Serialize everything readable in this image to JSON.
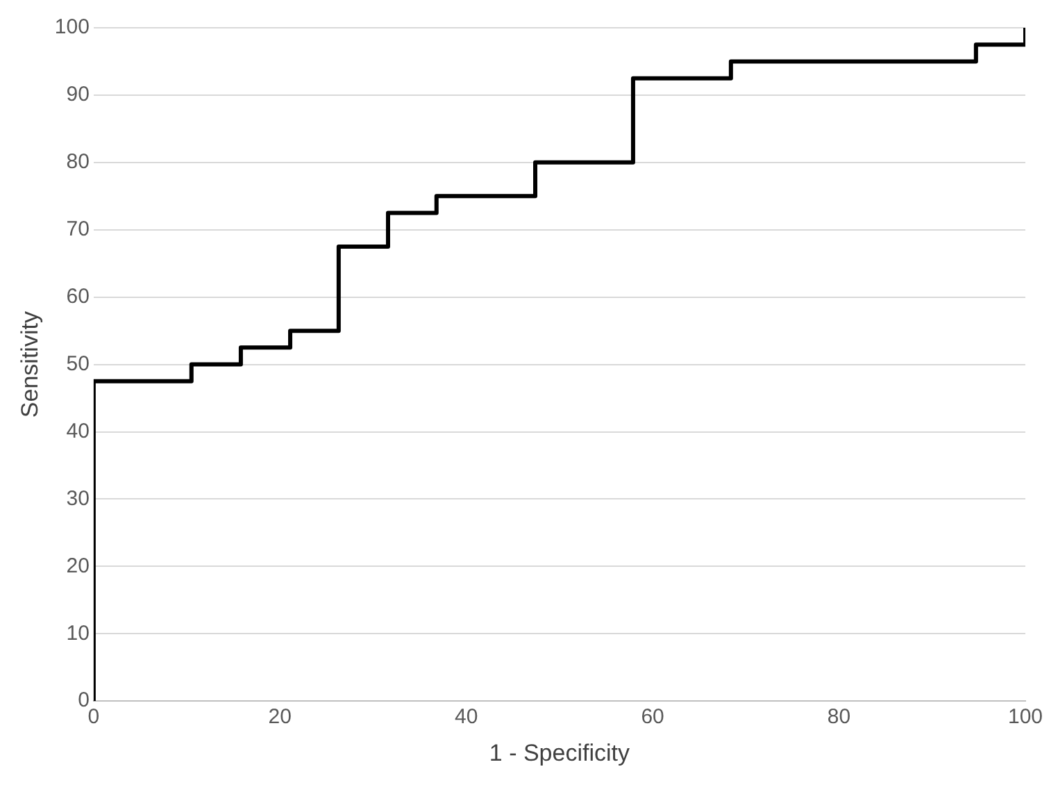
{
  "chart_data": {
    "type": "step",
    "xlabel": "1 - Specificity",
    "ylabel": "Sensitivity",
    "x": [
      0,
      0,
      10.5,
      15.8,
      21.1,
      26.3,
      31.6,
      36.8,
      47.4,
      57.9,
      68.4,
      94.7,
      100
    ],
    "series": [
      {
        "color": "#000000",
        "values": [
          0,
          47.5,
          50,
          52.5,
          55,
          67.5,
          72.5,
          75,
          80,
          92.5,
          95,
          97.5,
          100
        ]
      }
    ],
    "xlim": [
      0,
      100
    ],
    "xticks": [
      0,
      20,
      40,
      60,
      80,
      100
    ],
    "ylim": [
      0,
      100
    ],
    "yticks": [
      0,
      10,
      20,
      30,
      40,
      50,
      60,
      70,
      80,
      90,
      100
    ],
    "grid": "y",
    "legend": false
  }
}
